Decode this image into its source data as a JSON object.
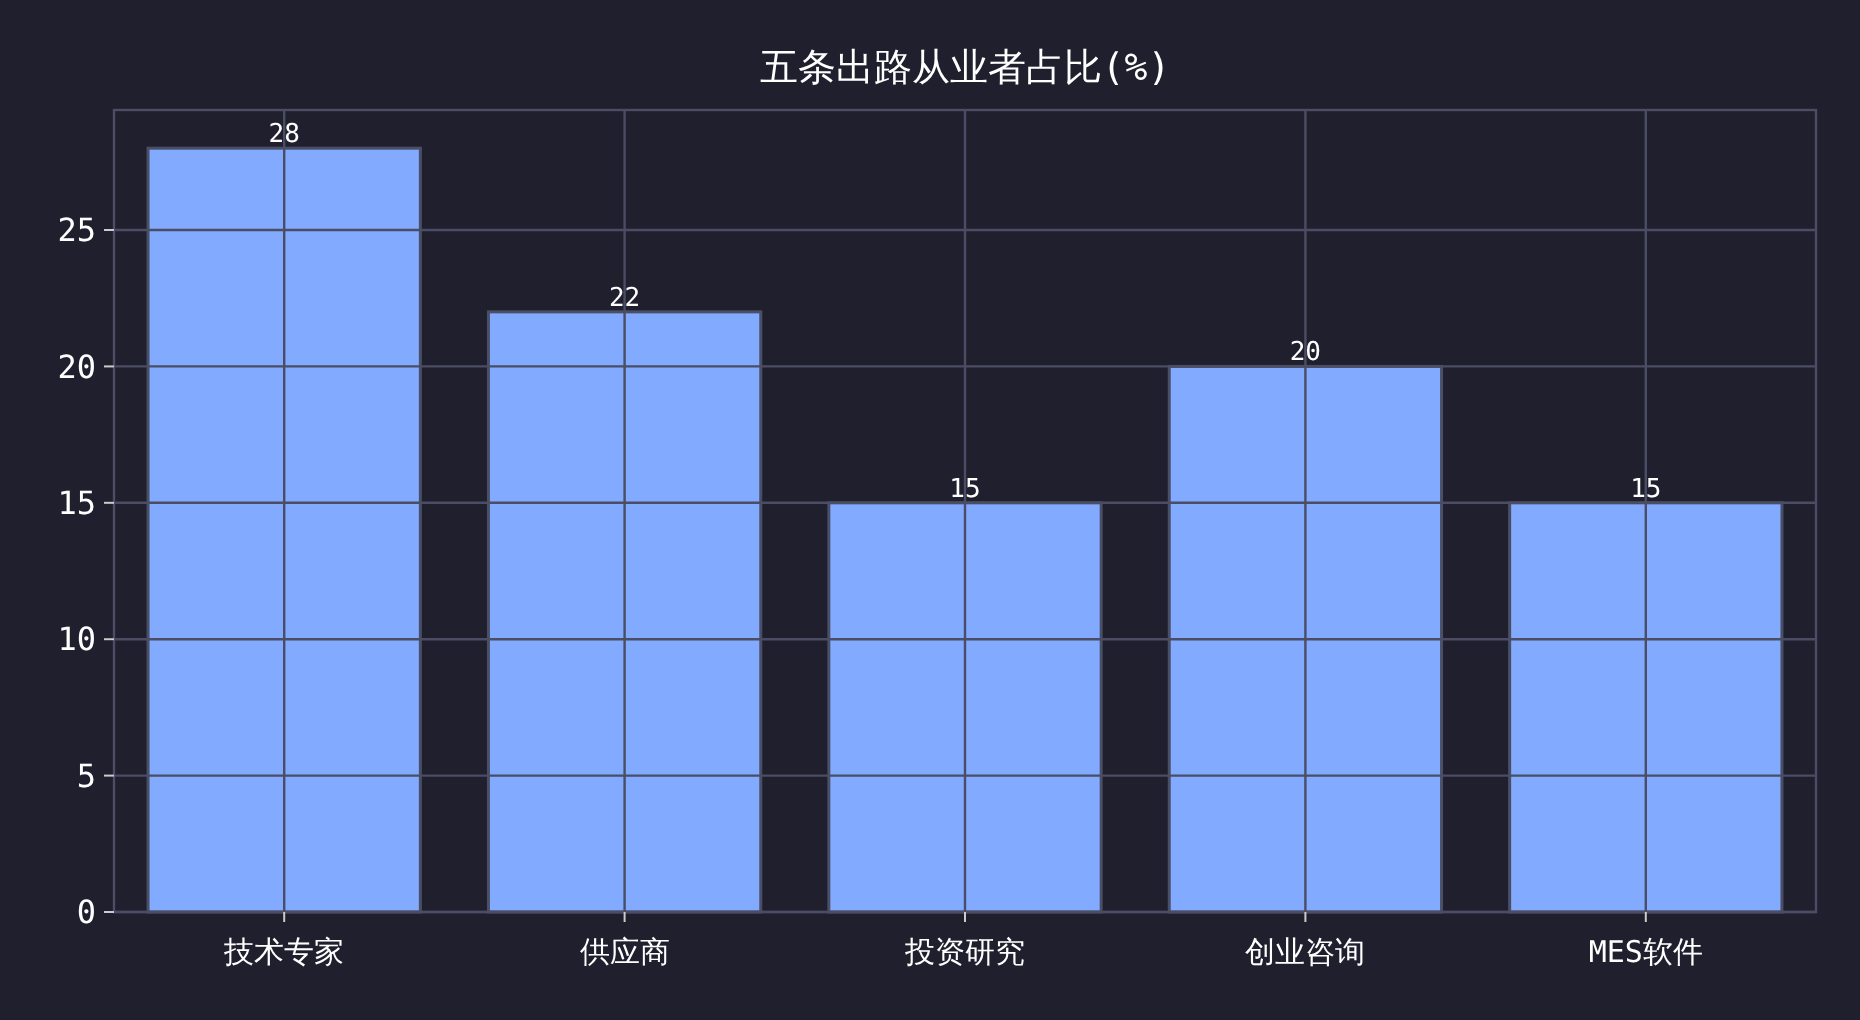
{
  "chart_data": {
    "type": "bar",
    "title": "五条出路从业者占比(%)",
    "categories": [
      "技术专家",
      "供应商",
      "投资研究",
      "创业咨询",
      "MES软件"
    ],
    "values": [
      28,
      22,
      15,
      20,
      15
    ],
    "color": "#82aaff",
    "ylim": [
      0,
      29.4
    ],
    "yticks": [
      0,
      5,
      10,
      15,
      20,
      25
    ],
    "grid": true,
    "data_labels": true
  }
}
